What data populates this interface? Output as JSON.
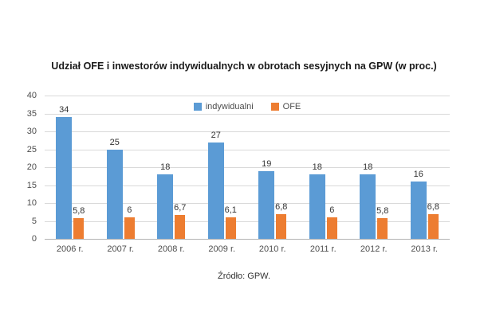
{
  "chart_data": {
    "type": "bar",
    "title": "Udział OFE i inwestorów indywidualnych w obrotach sesyjnych na GPW (w proc.)",
    "categories": [
      "2006 r.",
      "2007 r.",
      "2008 r.",
      "2009 r.",
      "2010 r.",
      "2011 r.",
      "2012 r.",
      "2013 r."
    ],
    "series": [
      {
        "name": "indywidualni",
        "color": "#5b9bd5",
        "values": [
          34,
          25,
          18,
          27,
          19,
          18,
          18,
          16
        ],
        "labels": [
          "34",
          "25",
          "18",
          "27",
          "19",
          "18",
          "18",
          "16"
        ]
      },
      {
        "name": "OFE",
        "color": "#ed7d31",
        "values": [
          5.8,
          6,
          6.7,
          6.1,
          6.8,
          6,
          5.8,
          6.8
        ],
        "labels": [
          "5,8",
          "6",
          "6,7",
          "6,1",
          "6,8",
          "6",
          "5,8",
          "6,8"
        ]
      }
    ],
    "ylim": [
      0,
      40
    ],
    "yticks": [
      0,
      5,
      10,
      15,
      20,
      25,
      30,
      35,
      40
    ],
    "grid": true,
    "legend_position": "top-center",
    "source": "Źródło: GPW."
  }
}
